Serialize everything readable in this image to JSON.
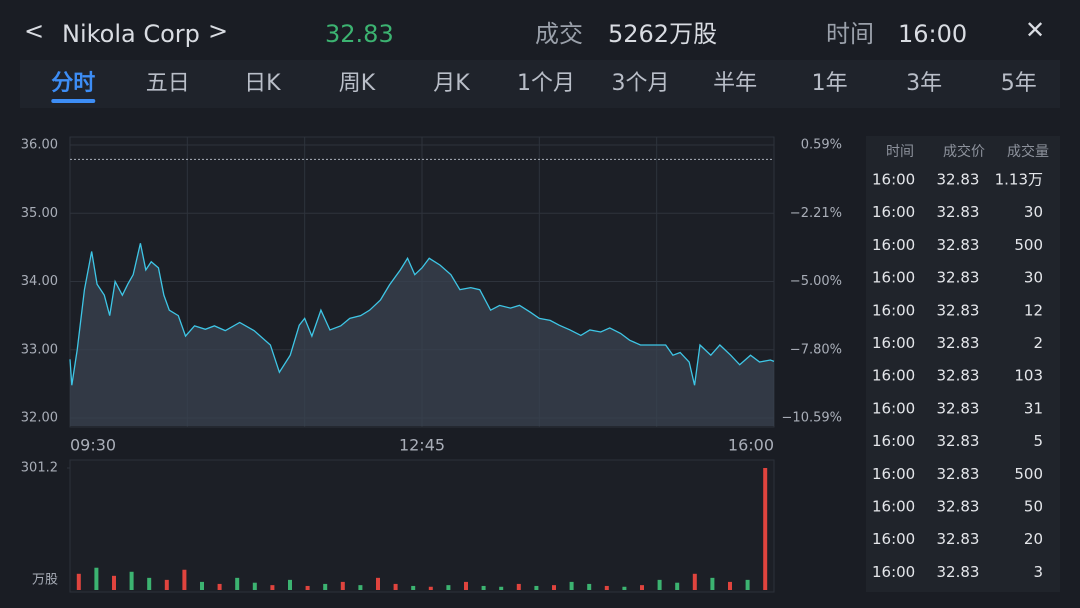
{
  "header": {
    "back": "<",
    "name": "Nikola Corp",
    "next": ">",
    "price": "32.83",
    "volume_label": "成交",
    "volume": "5262万股",
    "time_label": "时间",
    "time": "16:00",
    "close": "✕"
  },
  "tabs": {
    "active": 0,
    "items": [
      "分时",
      "五日",
      "日K",
      "周K",
      "月K",
      "1个月",
      "3个月",
      "半年",
      "1年",
      "3年",
      "5年"
    ]
  },
  "chart_data": [
    {
      "type": "line",
      "color": "#3ec6e6",
      "fill": "#3a4350",
      "prev_close": 35.79,
      "x": [
        0,
        1,
        4,
        8,
        12,
        15,
        19,
        22,
        25,
        29,
        32,
        35,
        39,
        42,
        45,
        49,
        52,
        55,
        60,
        64,
        69,
        75,
        80,
        86,
        94,
        102,
        111,
        116,
        122,
        127,
        130,
        134,
        139,
        144,
        150,
        155,
        161,
        166,
        172,
        177,
        183,
        187,
        191,
        195,
        199,
        205,
        211,
        216,
        222,
        227,
        233,
        238,
        244,
        249,
        255,
        260,
        266,
        271,
        277,
        283,
        288,
        294,
        299,
        305,
        310,
        316,
        324,
        330,
        334,
        338,
        343,
        346,
        349,
        355,
        360,
        366,
        371,
        377,
        382,
        388,
        390
      ],
      "values": [
        32.86,
        32.48,
        33.0,
        33.88,
        34.44,
        33.96,
        33.8,
        33.5,
        34.0,
        33.8,
        33.96,
        34.1,
        34.56,
        34.17,
        34.29,
        34.2,
        33.8,
        33.58,
        33.5,
        33.2,
        33.35,
        33.3,
        33.35,
        33.28,
        33.4,
        33.28,
        33.07,
        32.67,
        32.92,
        33.36,
        33.46,
        33.2,
        33.58,
        33.29,
        33.35,
        33.46,
        33.5,
        33.58,
        33.73,
        33.95,
        34.17,
        34.34,
        34.1,
        34.2,
        34.34,
        34.24,
        34.1,
        33.88,
        33.91,
        33.88,
        33.58,
        33.65,
        33.61,
        33.65,
        33.55,
        33.46,
        33.43,
        33.36,
        33.29,
        33.21,
        33.29,
        33.26,
        33.32,
        33.24,
        33.14,
        33.07,
        33.07,
        33.07,
        32.92,
        32.96,
        32.82,
        32.48,
        33.07,
        32.92,
        33.07,
        32.92,
        32.78,
        32.92,
        32.82,
        32.85,
        32.83
      ],
      "xlim": [
        0,
        390
      ],
      "xticks": [
        {
          "value": 0,
          "label": "09:30"
        },
        {
          "value": 195,
          "label": "12:45"
        },
        {
          "value": 390,
          "label": "16:00"
        }
      ],
      "xgrid": [
        0,
        65,
        130,
        195,
        260,
        325,
        390
      ],
      "ylim": [
        32,
        36
      ],
      "yticks": [
        {
          "value": 32,
          "label": "32.00"
        },
        {
          "value": 33,
          "label": "33.00"
        },
        {
          "value": 34,
          "label": "34.00"
        },
        {
          "value": 35,
          "label": "35.00"
        },
        {
          "value": 36,
          "label": "36.00"
        }
      ],
      "y2lim": [
        -10.59,
        0.59
      ],
      "y2ticks": [
        {
          "value": 0.59,
          "label": "0.59%"
        },
        {
          "value": -2.21,
          "label": "−2.21%"
        },
        {
          "value": -5.0,
          "label": "−5.00%"
        },
        {
          "value": -7.8,
          "label": "−7.80%"
        },
        {
          "value": -10.59,
          "label": "−10.59%"
        }
      ]
    },
    {
      "type": "bar",
      "unit": "万股",
      "x": [
        0,
        10,
        20,
        30,
        40,
        50,
        60,
        70,
        80,
        90,
        100,
        110,
        120,
        130,
        140,
        150,
        160,
        170,
        180,
        190,
        200,
        210,
        220,
        230,
        240,
        250,
        260,
        270,
        280,
        290,
        300,
        310,
        320,
        330,
        340,
        350,
        360,
        370,
        380,
        390
      ],
      "values": [
        40,
        55,
        35,
        45,
        30,
        25,
        50,
        20,
        15,
        30,
        18,
        12,
        25,
        10,
        15,
        20,
        12,
        30,
        15,
        10,
        8,
        12,
        20,
        10,
        8,
        15,
        10,
        12,
        20,
        15,
        10,
        8,
        12,
        25,
        18,
        40,
        30,
        20,
        25,
        301.2
      ],
      "colors": [
        "#e0443e",
        "#3cb371",
        "#e0443e",
        "#3cb371",
        "#3cb371",
        "#e0443e",
        "#e0443e",
        "#3cb371",
        "#e0443e",
        "#3cb371",
        "#3cb371",
        "#e0443e",
        "#3cb371",
        "#e0443e",
        "#3cb371",
        "#e0443e",
        "#3cb371",
        "#e0443e",
        "#e0443e",
        "#3cb371",
        "#e0443e",
        "#3cb371",
        "#e0443e",
        "#3cb371",
        "#3cb371",
        "#e0443e",
        "#3cb371",
        "#e0443e",
        "#3cb371",
        "#3cb371",
        "#e0443e",
        "#3cb371",
        "#e0443e",
        "#3cb371",
        "#3cb371",
        "#e0443e",
        "#3cb371",
        "#e0443e",
        "#3cb371",
        "#e0443e"
      ],
      "xlim": [
        -5,
        395
      ],
      "ylim": [
        0,
        301.2
      ],
      "yticks": [
        301.2
      ]
    }
  ],
  "trades": {
    "columns": [
      "时间",
      "成交价",
      "成交量"
    ],
    "rows": [
      [
        "16:00",
        "32.83",
        "1.13万"
      ],
      [
        "16:00",
        "32.83",
        "30"
      ],
      [
        "16:00",
        "32.83",
        "500"
      ],
      [
        "16:00",
        "32.83",
        "30"
      ],
      [
        "16:00",
        "32.83",
        "12"
      ],
      [
        "16:00",
        "32.83",
        "2"
      ],
      [
        "16:00",
        "32.83",
        "103"
      ],
      [
        "16:00",
        "32.83",
        "31"
      ],
      [
        "16:00",
        "32.83",
        "5"
      ],
      [
        "16:00",
        "32.83",
        "500"
      ],
      [
        "16:00",
        "32.83",
        "50"
      ],
      [
        "16:00",
        "32.83",
        "20"
      ],
      [
        "16:00",
        "32.83",
        "3"
      ]
    ]
  }
}
